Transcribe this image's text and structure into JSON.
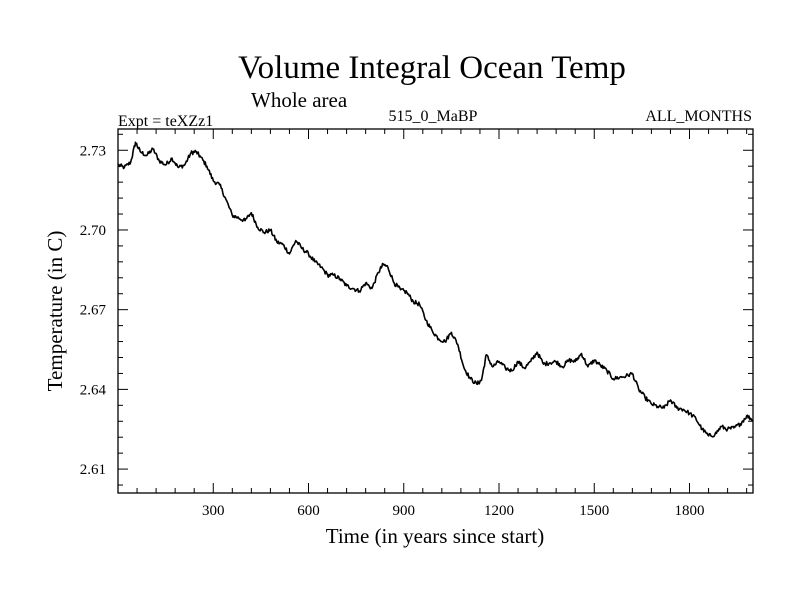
{
  "chart_data": {
    "type": "line",
    "title": "Volume Integral Ocean Temp",
    "subtitle": "Whole area",
    "experiment_label": "Expt = teXZz1",
    "run_label": "515_0_MaBP",
    "months_label": "ALL_MONTHS",
    "xlabel": "Time (in years since start)",
    "ylabel": "Temperature (in C)",
    "xlim": [
      0,
      2000
    ],
    "ylim": [
      2.601,
      2.738
    ],
    "x_ticks": [
      300,
      600,
      900,
      1200,
      1500,
      1800
    ],
    "y_ticks": [
      2.61,
      2.64,
      2.67,
      2.7,
      2.73
    ],
    "y_tick_labels": [
      "2.61",
      "2.64",
      "2.67",
      "2.70",
      "2.73"
    ],
    "grid": false,
    "series": [
      {
        "name": "Volume integral ocean temperature",
        "color": "#000000",
        "x": [
          0,
          20,
          40,
          55,
          70,
          90,
          110,
          130,
          150,
          170,
          190,
          210,
          230,
          245,
          260,
          280,
          300,
          320,
          340,
          360,
          380,
          400,
          420,
          440,
          460,
          480,
          500,
          520,
          540,
          560,
          580,
          600,
          620,
          640,
          660,
          680,
          700,
          720,
          740,
          760,
          780,
          800,
          820,
          835,
          850,
          870,
          890,
          910,
          930,
          950,
          970,
          990,
          1010,
          1030,
          1050,
          1070,
          1090,
          1110,
          1130,
          1145,
          1160,
          1180,
          1200,
          1220,
          1240,
          1260,
          1280,
          1300,
          1320,
          1340,
          1360,
          1380,
          1400,
          1420,
          1440,
          1460,
          1480,
          1500,
          1520,
          1540,
          1560,
          1580,
          1600,
          1620,
          1640,
          1660,
          1680,
          1700,
          1720,
          1740,
          1760,
          1780,
          1800,
          1820,
          1840,
          1860,
          1880,
          1900,
          1920,
          1940,
          1960,
          1980,
          2000
        ],
        "values": [
          2.7245,
          2.7235,
          2.7255,
          2.733,
          2.7295,
          2.728,
          2.7305,
          2.726,
          2.7245,
          2.727,
          2.7235,
          2.7245,
          2.729,
          2.7295,
          2.7275,
          2.724,
          2.7185,
          2.717,
          2.7115,
          2.7055,
          2.7045,
          2.7035,
          2.7065,
          2.701,
          2.699,
          2.7,
          2.6955,
          2.6945,
          2.691,
          2.696,
          2.693,
          2.691,
          2.688,
          2.686,
          2.683,
          2.683,
          2.6815,
          2.679,
          2.678,
          2.677,
          2.68,
          2.678,
          2.684,
          2.687,
          2.686,
          2.68,
          2.6775,
          2.6765,
          2.673,
          2.672,
          2.666,
          2.662,
          2.659,
          2.658,
          2.6615,
          2.657,
          2.648,
          2.644,
          2.642,
          2.6435,
          2.653,
          2.6485,
          2.6505,
          2.648,
          2.647,
          2.6505,
          2.648,
          2.6505,
          2.654,
          2.6495,
          2.65,
          2.6505,
          2.6485,
          2.651,
          2.6505,
          2.6535,
          2.6485,
          2.651,
          2.649,
          2.647,
          2.644,
          2.6445,
          2.645,
          2.646,
          2.64,
          2.637,
          2.6345,
          2.6335,
          2.633,
          2.636,
          2.633,
          2.6325,
          2.631,
          2.629,
          2.625,
          2.6225,
          2.623,
          2.626,
          2.625,
          2.6255,
          2.627,
          2.63,
          2.6285
        ]
      }
    ]
  }
}
